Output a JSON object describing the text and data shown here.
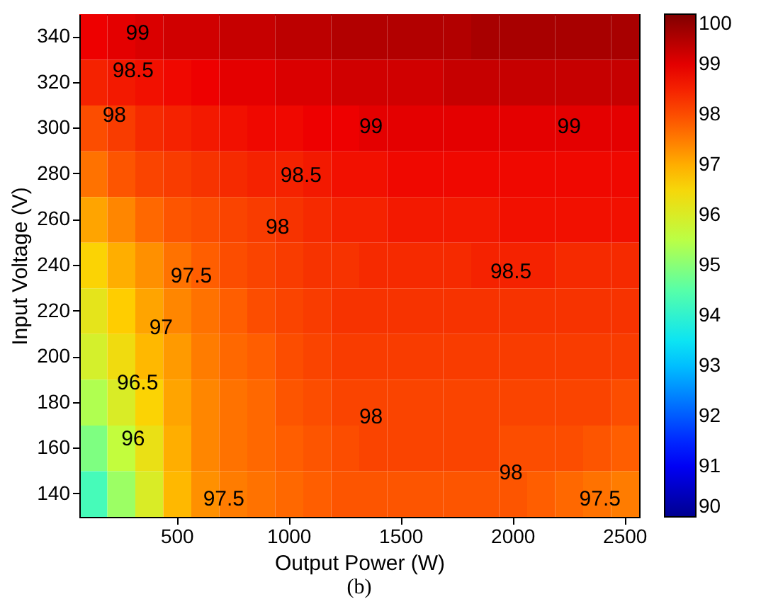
{
  "chart_data": {
    "type": "heatmap",
    "xlabel": "Output Power (W)",
    "ylabel": "Input Voltage (V)",
    "categories": [
      null,
      null,
      null,
      "500",
      null,
      null,
      null,
      "1000",
      null,
      null,
      null,
      "1500",
      null,
      null,
      null,
      "2000",
      null,
      null,
      null,
      "2500"
    ],
    "y_categories": [
      "340",
      "320",
      "300",
      "280",
      "260",
      "240",
      "220",
      "200",
      "180",
      "160",
      "140"
    ],
    "cells": [
      [
        98.9,
        99.0,
        99.1,
        99.2,
        99.2,
        99.3,
        99.3,
        99.4,
        99.4,
        99.5,
        99.5,
        99.5,
        99.5,
        99.5,
        99.6,
        99.6,
        99.6,
        99.6,
        99.6,
        99.6
      ],
      [
        98.5,
        98.6,
        98.7,
        98.8,
        98.9,
        99.0,
        99.0,
        99.1,
        99.1,
        99.2,
        99.2,
        99.2,
        99.2,
        99.3,
        99.3,
        99.3,
        99.3,
        99.3,
        99.3,
        99.3
      ],
      [
        98.0,
        98.2,
        98.4,
        98.5,
        98.6,
        98.7,
        98.8,
        98.8,
        98.9,
        98.9,
        99.0,
        99.0,
        99.0,
        99.0,
        99.0,
        99.0,
        99.0,
        99.0,
        99.0,
        99.0
      ],
      [
        97.6,
        97.9,
        98.1,
        98.2,
        98.3,
        98.4,
        98.5,
        98.5,
        98.6,
        98.7,
        98.7,
        98.8,
        98.8,
        98.8,
        98.8,
        98.8,
        98.8,
        98.8,
        98.8,
        98.8
      ],
      [
        97.1,
        97.4,
        97.7,
        97.9,
        98.0,
        98.1,
        98.2,
        98.3,
        98.4,
        98.5,
        98.5,
        98.6,
        98.6,
        98.6,
        98.6,
        98.7,
        98.7,
        98.7,
        98.7,
        98.7
      ],
      [
        96.6,
        97.0,
        97.3,
        97.6,
        97.8,
        98.0,
        98.1,
        98.2,
        98.3,
        98.3,
        98.4,
        98.4,
        98.4,
        98.4,
        98.5,
        98.5,
        98.5,
        98.4,
        98.4,
        98.4
      ],
      [
        96.2,
        96.7,
        97.1,
        97.4,
        97.6,
        97.8,
        98.0,
        98.1,
        98.2,
        98.3,
        98.3,
        98.3,
        98.3,
        98.3,
        98.3,
        98.3,
        98.3,
        98.3,
        98.3,
        98.3
      ],
      [
        95.9,
        96.4,
        96.9,
        97.2,
        97.5,
        97.7,
        97.8,
        98.0,
        98.1,
        98.2,
        98.2,
        98.2,
        98.2,
        98.2,
        98.2,
        98.2,
        98.2,
        98.2,
        98.2,
        98.2
      ],
      [
        95.4,
        96.0,
        96.6,
        97.1,
        97.4,
        97.6,
        97.7,
        97.9,
        98.0,
        98.1,
        98.1,
        98.1,
        98.1,
        98.1,
        98.1,
        98.1,
        98.1,
        98.1,
        98.1,
        98.0
      ],
      [
        94.9,
        95.6,
        96.3,
        97.0,
        97.4,
        97.6,
        97.7,
        97.8,
        97.9,
        98.0,
        98.1,
        98.1,
        98.1,
        98.1,
        98.1,
        98.0,
        98.0,
        98.0,
        97.9,
        97.8
      ],
      [
        94.3,
        95.2,
        96.0,
        96.9,
        97.3,
        97.5,
        97.6,
        97.7,
        97.8,
        97.9,
        97.9,
        97.9,
        97.9,
        97.9,
        97.9,
        97.9,
        97.8,
        97.7,
        97.6,
        97.5
      ]
    ],
    "clim": [
      90,
      100
    ],
    "cticks": [
      90,
      91,
      92,
      93,
      94,
      95,
      96,
      97,
      98,
      99,
      100
    ],
    "annotations": [
      "99",
      "98.5",
      "98",
      "99",
      "99",
      "98.5",
      "98",
      "98.5",
      "97.5",
      "97",
      "96.5",
      "96",
      "98",
      "98",
      "97.5",
      "97.5",
      "(b)"
    ]
  }
}
